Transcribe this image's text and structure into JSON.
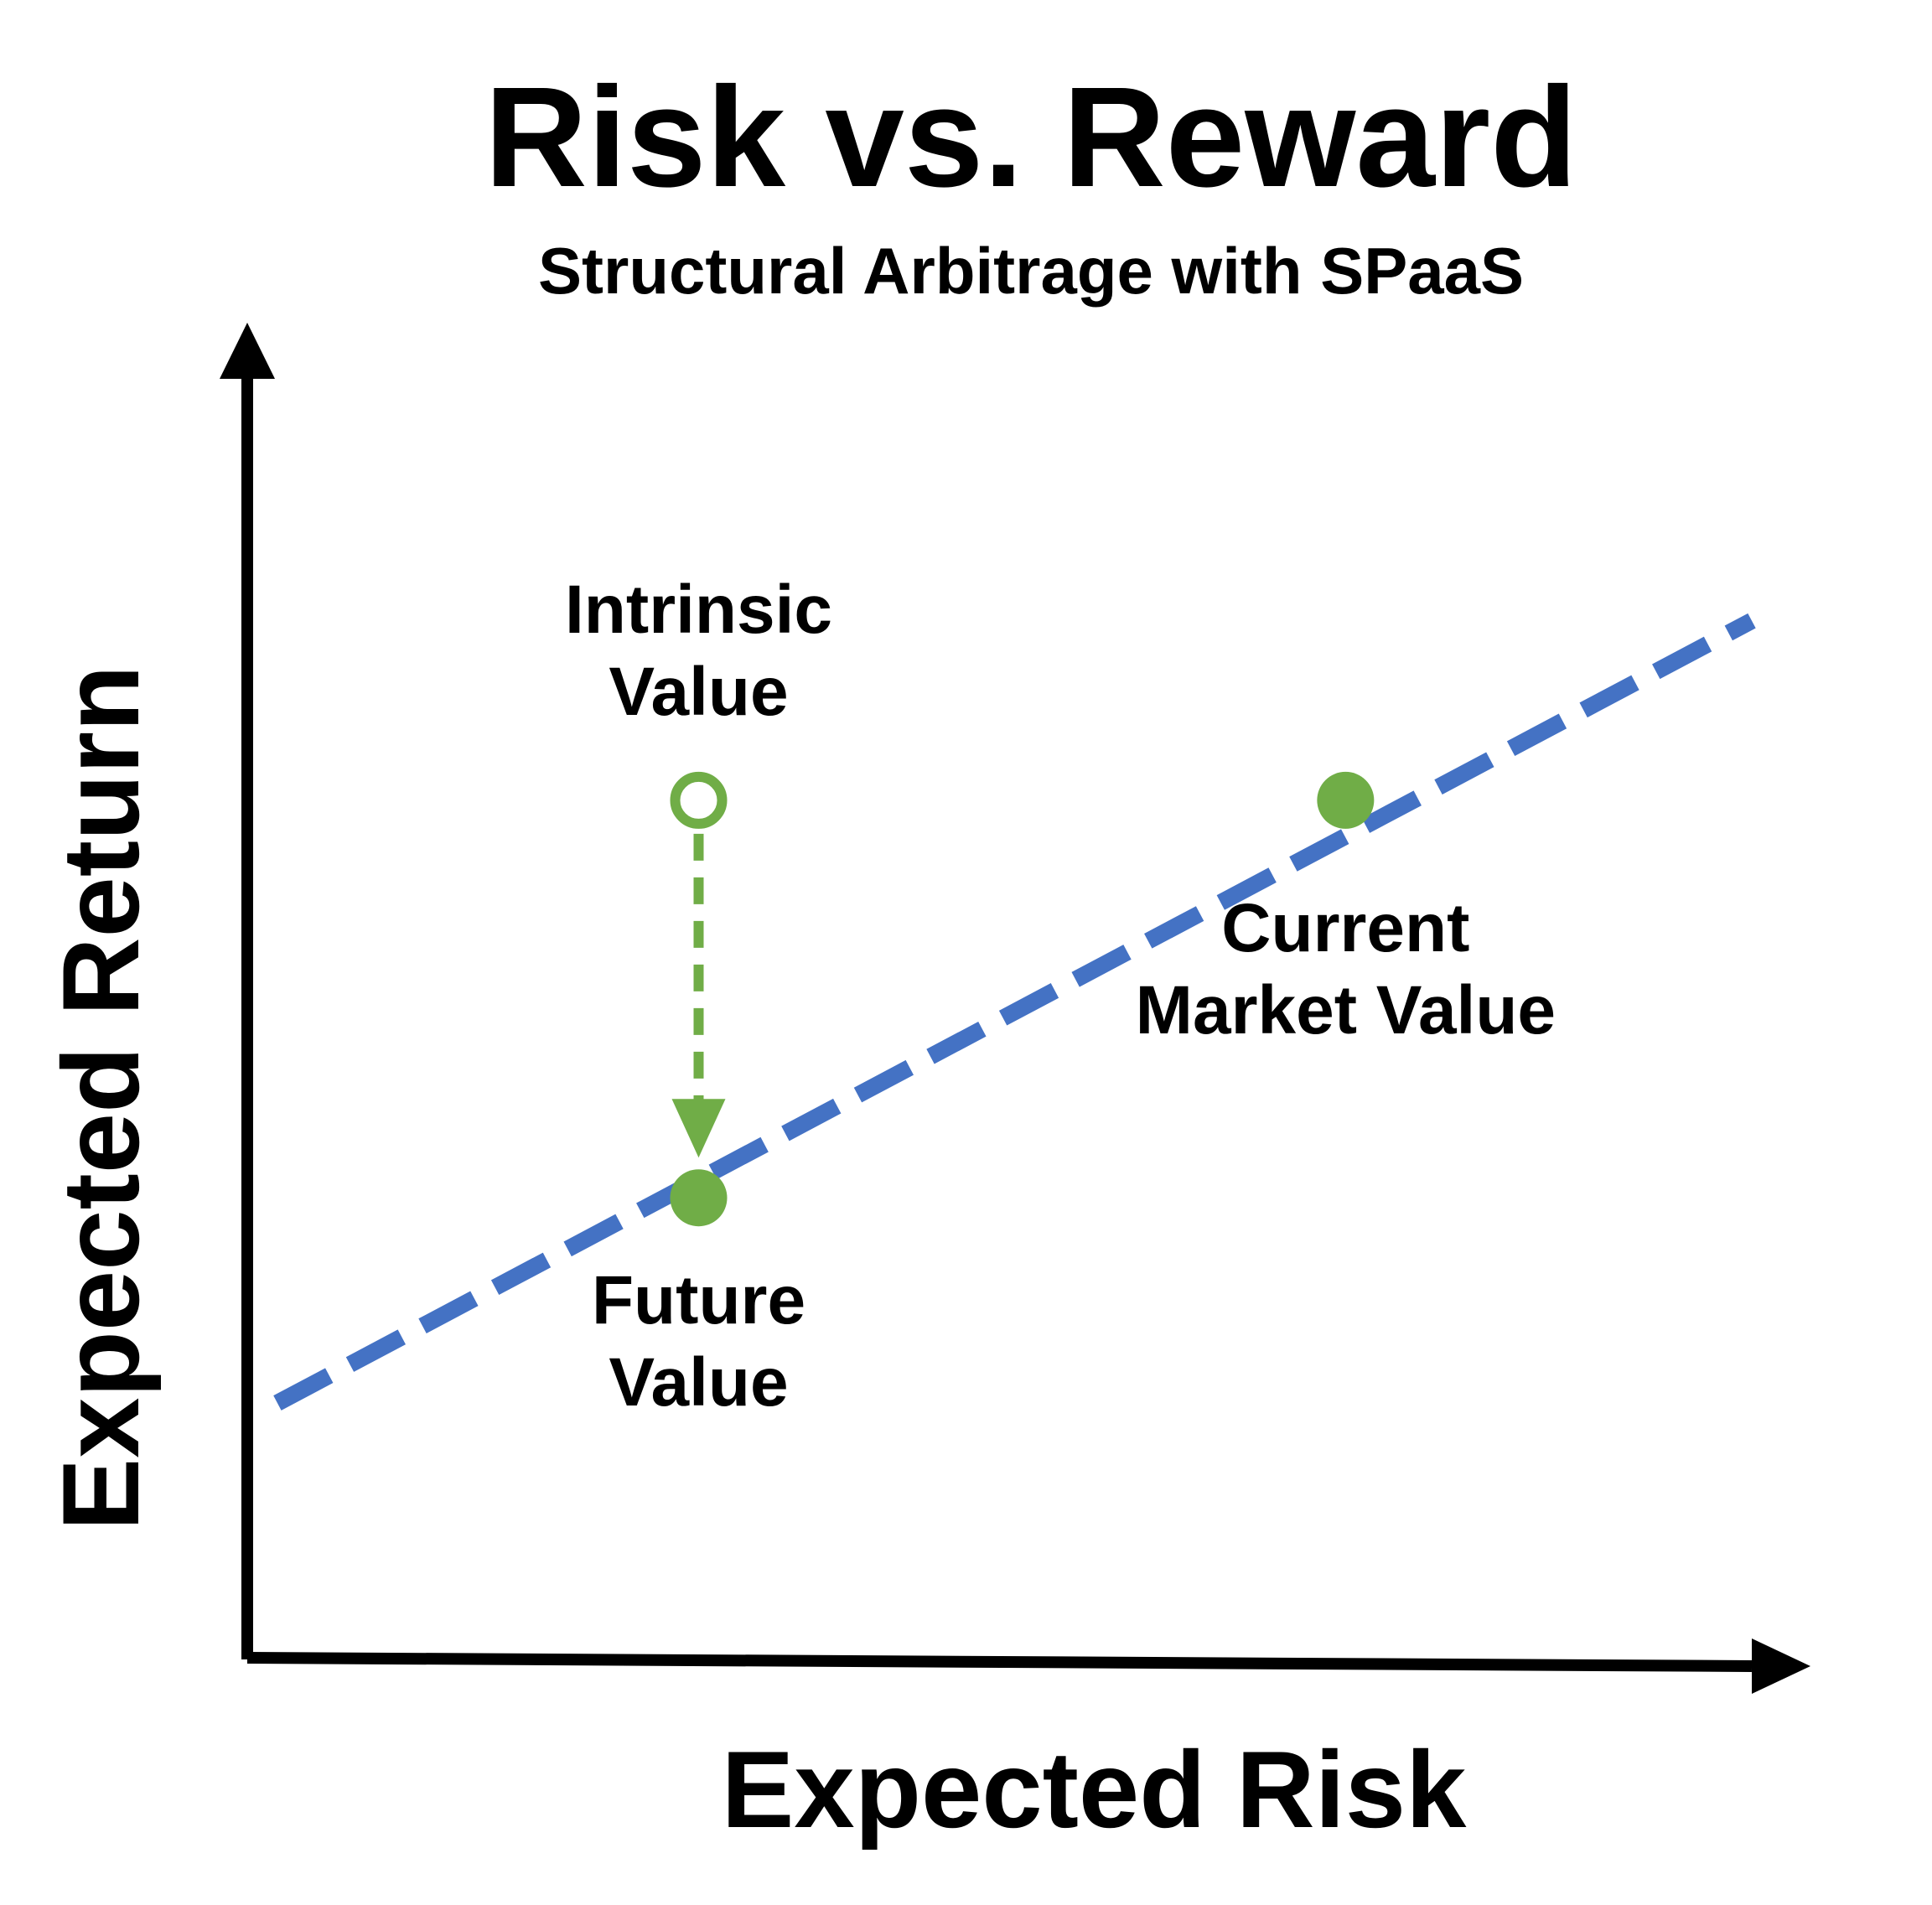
{
  "chart_data": {
    "type": "line",
    "title": "Risk vs. Reward",
    "subtitle": "Structural Arbitrage with SPaaS",
    "xlabel": "Expected Risk",
    "ylabel": "Expected Return",
    "grid": false,
    "legend": "none",
    "series": [
      {
        "style": "dashed",
        "color": "#4472c4",
        "x": [
          0.02,
          1.0
        ],
        "y": [
          0.2,
          0.81
        ]
      }
    ],
    "points": [
      {
        "label": "Intrinsic Value",
        "x": 0.3,
        "y": 0.67,
        "filled": false,
        "color": "#70ad47"
      },
      {
        "label": "Current Market Value",
        "x": 0.73,
        "y": 0.67,
        "filled": true,
        "color": "#70ad47"
      },
      {
        "label": "Future Value",
        "x": 0.3,
        "y": 0.36,
        "filled": true,
        "color": "#70ad47"
      }
    ],
    "annotations": [
      {
        "type": "arrow",
        "style": "dashed",
        "from": "Intrinsic Value",
        "to": "Future Value",
        "color": "#70ad47"
      }
    ]
  }
}
